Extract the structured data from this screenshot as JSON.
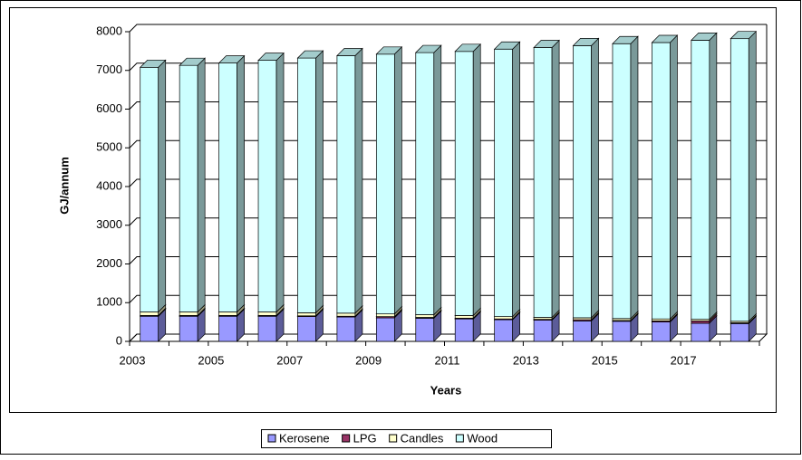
{
  "chart_data": {
    "type": "bar3d_stacked",
    "x_label": "Years",
    "y_label": "GJ/annum",
    "categories": [
      "2003",
      null,
      "2005",
      null,
      "2007",
      null,
      "2009",
      null,
      "2011",
      null,
      "2013",
      null,
      "2015",
      null,
      "2017",
      null
    ],
    "series": [
      {
        "name": "Kerosene",
        "color": "#9999ff",
        "values": [
          650,
          650,
          650,
          650,
          640,
          630,
          610,
          600,
          580,
          560,
          550,
          530,
          520,
          500,
          470,
          460
        ]
      },
      {
        "name": "LPG",
        "color": "#993366",
        "values": [
          20,
          20,
          20,
          20,
          20,
          20,
          30,
          20,
          20,
          20,
          20,
          30,
          20,
          30,
          60,
          20
        ]
      },
      {
        "name": "Candles",
        "color": "#ffffcc",
        "values": [
          90,
          90,
          90,
          90,
          80,
          80,
          70,
          70,
          70,
          60,
          50,
          50,
          50,
          50,
          40,
          40
        ]
      },
      {
        "name": "Wood",
        "color": "#ccffff",
        "values": [
          6320,
          6370,
          6430,
          6500,
          6580,
          6650,
          6710,
          6770,
          6820,
          6910,
          6970,
          7030,
          7100,
          7140,
          7210,
          7300
        ]
      }
    ],
    "ylim": [
      0,
      8000
    ],
    "yticks": [
      0,
      1000,
      2000,
      3000,
      4000,
      5000,
      6000,
      7000,
      8000
    ],
    "grid": true,
    "legend": "bottom"
  }
}
